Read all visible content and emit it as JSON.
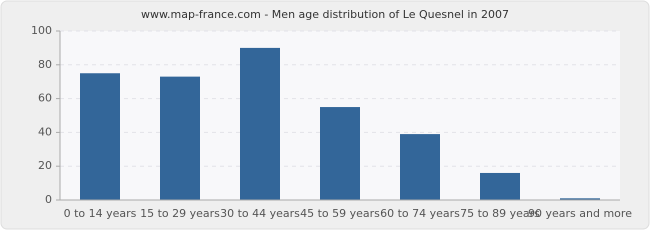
{
  "chart_data": {
    "type": "bar",
    "title": "www.map-france.com - Men age distribution of Le Quesnel in 2007",
    "categories": [
      "0 to 14 years",
      "15 to 29 years",
      "30 to 44 years",
      "45 to 59 years",
      "60 to 74 years",
      "75 to 89 years",
      "90 years and more"
    ],
    "values": [
      75,
      73,
      90,
      55,
      39,
      16,
      1
    ],
    "color": "#336699",
    "ylim": [
      0,
      100
    ],
    "yticks": [
      0,
      20,
      40,
      60,
      80,
      100
    ],
    "grid": true
  }
}
